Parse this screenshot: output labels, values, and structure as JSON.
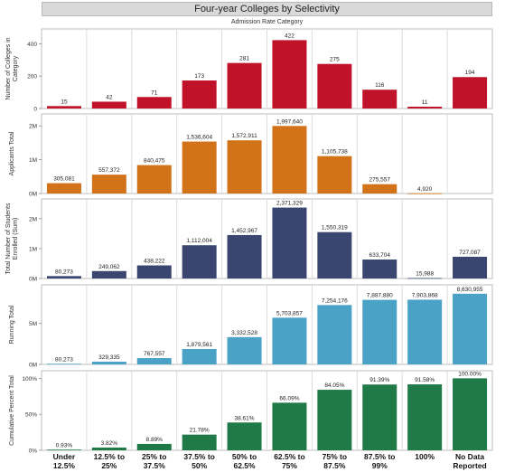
{
  "title": "Four-year Colleges by Selectivity",
  "subtitle": "Admission Rate Category",
  "chart_data": {
    "type": "bar",
    "categories": [
      [
        "Under",
        "12.5%"
      ],
      [
        "12.5% to",
        "25%"
      ],
      [
        "25% to",
        "37.5%"
      ],
      [
        "37.5% to",
        "50%"
      ],
      [
        "50% to",
        "62.5%"
      ],
      [
        "62.5% to",
        "75%"
      ],
      [
        "75% to",
        "87.5%"
      ],
      [
        "87.5% to",
        "99%"
      ],
      [
        "100%"
      ],
      [
        "No Data",
        "Reported"
      ]
    ],
    "panels": [
      {
        "ylabel": [
          "Number of Colleges in",
          "Category"
        ],
        "color": "#c0132a",
        "ylim": [
          0,
          480
        ],
        "ticks": [
          {
            "v": 0,
            "label": "0"
          },
          {
            "v": 200,
            "label": "200"
          },
          {
            "v": 400,
            "label": "400"
          }
        ],
        "values": [
          15,
          42,
          71,
          173,
          281,
          422,
          275,
          116,
          11,
          194
        ],
        "labels": [
          "15",
          "42",
          "71",
          "173",
          "281",
          "422",
          "275",
          "116",
          "11",
          "194"
        ]
      },
      {
        "ylabel": [
          "Applicants Total"
        ],
        "color": "#d2731a",
        "ylim": [
          0,
          2300000
        ],
        "ticks": [
          {
            "v": 0,
            "label": "0M"
          },
          {
            "v": 1000000,
            "label": "1M"
          },
          {
            "v": 2000000,
            "label": "2M"
          }
        ],
        "values": [
          305081,
          557372,
          840475,
          1536604,
          1572911,
          1997640,
          1105738,
          275557,
          4920,
          0
        ],
        "labels": [
          "305,081",
          "557,372",
          "840,475",
          "1,536,604",
          "1,572,911",
          "1,997,640",
          "1,105,738",
          "275,557",
          "4,920",
          ""
        ]
      },
      {
        "ylabel": [
          "Total Number of Students",
          "Enrolled (Sum)"
        ],
        "color": "#3a4670",
        "ylim": [
          0,
          2600000
        ],
        "ticks": [
          {
            "v": 0,
            "label": "0M"
          },
          {
            "v": 1000000,
            "label": "1M"
          },
          {
            "v": 2000000,
            "label": "2M"
          }
        ],
        "values": [
          80273,
          249062,
          438222,
          1112004,
          1452967,
          2371329,
          1550319,
          633704,
          15988,
          727087
        ],
        "labels": [
          "80,273",
          "249,062",
          "438,222",
          "1,112,004",
          "1,452,967",
          "2,371,329",
          "1,550,319",
          "633,704",
          "15,988",
          "727,087"
        ]
      },
      {
        "ylabel": [
          "Running Total"
        ],
        "color": "#4aa3c6",
        "ylim": [
          0,
          9500000
        ],
        "ticks": [
          {
            "v": 0,
            "label": "0M"
          },
          {
            "v": 5000000,
            "label": "5M"
          }
        ],
        "values": [
          80273,
          329335,
          767557,
          1879561,
          3332528,
          5703857,
          7254176,
          7887880,
          7903868,
          8630955
        ],
        "labels": [
          "80,273",
          "329,335",
          "767,557",
          "1,879,561",
          "3,332,528",
          "5,703,857",
          "7,254,176",
          "7,887,880",
          "7,903,868",
          "8,630,955"
        ]
      },
      {
        "ylabel": [
          "Cumulative Percent Total"
        ],
        "color": "#1f7a47",
        "ylim": [
          0,
          108
        ],
        "ticks": [
          {
            "v": 0,
            "label": "0%"
          },
          {
            "v": 50,
            "label": "50%"
          },
          {
            "v": 100,
            "label": "100%"
          }
        ],
        "values": [
          0.93,
          3.82,
          8.89,
          21.78,
          38.61,
          66.09,
          84.05,
          91.39,
          91.58,
          100
        ],
        "labels": [
          "0.93%",
          "3.82%",
          "8.89%",
          "21.78%",
          "38.61%",
          "66.09%",
          "84.05%",
          "91.39%",
          "91.58%",
          "100.00%"
        ]
      }
    ]
  }
}
